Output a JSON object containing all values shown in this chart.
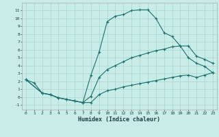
{
  "bg_color": "#c8ece8",
  "grid_color": "#aad4cc",
  "line_color": "#1a7070",
  "xlabel": "Humidex (Indice chaleur)",
  "xlim": [
    -0.5,
    23.5
  ],
  "ylim": [
    -1.6,
    12.0
  ],
  "yticks": [
    -1,
    0,
    1,
    2,
    3,
    4,
    5,
    6,
    7,
    8,
    9,
    10,
    11
  ],
  "xticks": [
    0,
    1,
    2,
    3,
    4,
    5,
    6,
    7,
    8,
    9,
    10,
    11,
    12,
    13,
    14,
    15,
    16,
    17,
    18,
    19,
    20,
    21,
    22,
    23
  ],
  "line1_x": [
    0,
    1,
    2,
    3,
    4,
    5,
    6,
    7,
    8,
    9,
    10,
    11,
    12,
    13,
    14,
    15,
    16,
    17,
    18,
    19,
    20,
    21,
    22,
    23
  ],
  "line1_y": [
    2.2,
    1.8,
    0.5,
    0.3,
    -0.1,
    -0.3,
    -0.5,
    -0.7,
    2.8,
    5.7,
    9.6,
    10.3,
    10.5,
    11.0,
    11.1,
    11.1,
    10.0,
    8.2,
    7.7,
    6.5,
    5.0,
    4.3,
    3.9,
    3.1
  ],
  "line2_x": [
    0,
    2,
    3,
    4,
    5,
    6,
    7,
    8,
    9,
    10,
    11,
    12,
    13,
    14,
    15,
    16,
    17,
    18,
    19,
    20,
    21,
    22,
    23
  ],
  "line2_y": [
    2.2,
    0.5,
    0.3,
    -0.1,
    -0.3,
    -0.5,
    -0.7,
    0.1,
    2.5,
    3.5,
    4.0,
    4.5,
    5.0,
    5.3,
    5.6,
    5.9,
    6.1,
    6.4,
    6.5,
    6.5,
    5.2,
    4.8,
    4.3
  ],
  "line3_x": [
    0,
    2,
    3,
    4,
    5,
    6,
    7,
    8,
    9,
    10,
    11,
    12,
    13,
    14,
    15,
    16,
    17,
    18,
    19,
    20,
    21,
    22,
    23
  ],
  "line3_y": [
    2.2,
    0.5,
    0.3,
    -0.1,
    -0.3,
    -0.5,
    -0.7,
    -0.7,
    0.3,
    0.8,
    1.0,
    1.3,
    1.5,
    1.7,
    1.9,
    2.1,
    2.3,
    2.5,
    2.7,
    2.8,
    2.5,
    2.8,
    3.1
  ]
}
